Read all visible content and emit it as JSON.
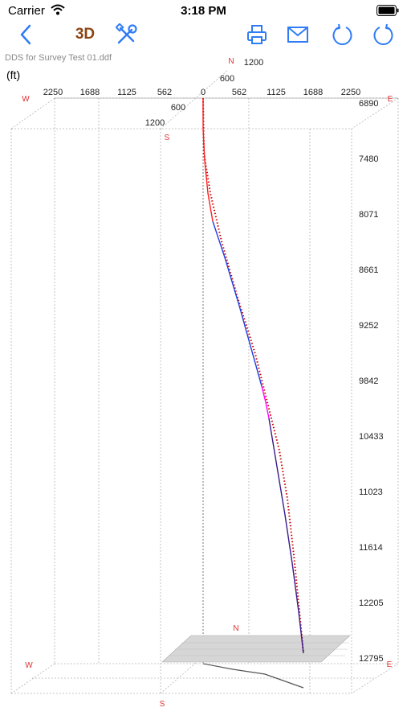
{
  "status_bar": {
    "carrier": "Carrier",
    "time": "3:18 PM"
  },
  "toolbar": {
    "mode_label": "3D"
  },
  "file_name": "DDS for Survey Test 01.ddf",
  "units_label": "(ft)",
  "compass": {
    "north": "N",
    "south": "S",
    "east": "E",
    "west": "W",
    "north_bottom": "N",
    "south_bottom": "S",
    "east_bottom": "E",
    "west_bottom": "W"
  },
  "ew_axis": {
    "labels": [
      "2250",
      "1688",
      "1125",
      "562",
      "0",
      "562",
      "1125",
      "1688",
      "2250"
    ]
  },
  "ns_axis": {
    "labels": [
      "1200",
      "600",
      "600",
      "1200"
    ]
  },
  "depth_axis": {
    "labels": [
      "6890",
      "7480",
      "8071",
      "8661",
      "9252",
      "9842",
      "10433",
      "11023",
      "11614",
      "12205",
      "12795"
    ]
  },
  "colors": {
    "accent": "#2f7cf6",
    "mode_label": "#8b4513",
    "compass": "#e03030",
    "planned_path": "#cc0000",
    "actual_path": "#ff2020",
    "actual_path_mid": "#2040e0",
    "actual_path_transition": "#ff00ff",
    "grid": "#b5b5b5"
  },
  "icons": {
    "back": "chevron-left-icon",
    "tools": "wrench-screwdriver-icon",
    "print": "printer-icon",
    "mail": "envelope-icon",
    "refresh": "refresh-icon",
    "rotate": "rotate-icon"
  }
}
